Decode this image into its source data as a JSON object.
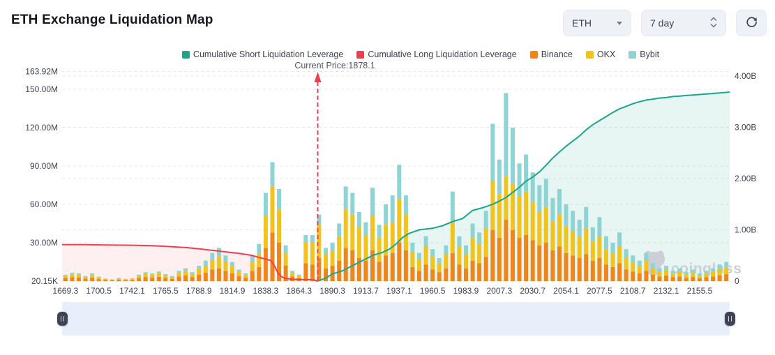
{
  "header": {
    "title": "ETH Exchange Liquidation Map"
  },
  "controls": {
    "symbol": {
      "value": "ETH"
    },
    "period": {
      "value": "7 day"
    },
    "icons": {
      "symbol_caret": "caret-down",
      "period_spinner": "chevrons-up-down",
      "refresh": "circular-arrow"
    }
  },
  "legend": {
    "items": [
      {
        "label": "Cumulative Short Liquidation Leverage",
        "color": "#18a78c"
      },
      {
        "label": "Cumulative Long Liquidation Leverage",
        "color": "#f23c4f"
      },
      {
        "label": "Binance",
        "color": "#ee861b"
      },
      {
        "label": "OKX",
        "color": "#f0c41c"
      },
      {
        "label": "Bybit",
        "color": "#8ed4d4"
      }
    ]
  },
  "annotation": {
    "current_price_text": "Current Price:1878.1",
    "current_price_value": 1878.1
  },
  "watermark": {
    "text": "coinglass",
    "color": "#cbd0d6"
  },
  "chart_data": {
    "type": "bar",
    "subtype": "stacked-bars-with-cumulative-lines",
    "title": "ETH Exchange Liquidation Map",
    "grid": true,
    "legend_position": "top",
    "x_axis": {
      "labels": [
        "1669.3",
        "1700.5",
        "1742.1",
        "1765.5",
        "1788.9",
        "1814.9",
        "1838.3",
        "1864.3",
        "1890.3",
        "1913.7",
        "1937.1",
        "1960.5",
        "1983.9",
        "2007.3",
        "2030.7",
        "2054.1",
        "2077.5",
        "2108.7",
        "2132.1",
        "2155.5"
      ],
      "label_every": 5,
      "num_bars": 100
    },
    "left_axis": {
      "unit": "M",
      "ticks": [
        {
          "label": "163.92M",
          "value": 163.92
        },
        {
          "label": "150.00M",
          "value": 150
        },
        {
          "label": "120.00M",
          "value": 120
        },
        {
          "label": "90.00M",
          "value": 90
        },
        {
          "label": "60.00M",
          "value": 60
        },
        {
          "label": "30.00M",
          "value": 30
        },
        {
          "label": "20.15K",
          "value": 0.02
        }
      ],
      "range": [
        0,
        163.92
      ]
    },
    "right_axis": {
      "unit": "B",
      "ticks": [
        {
          "label": "4.00B",
          "value": 4
        },
        {
          "label": "3.00B",
          "value": 3
        },
        {
          "label": "2.00B",
          "value": 2
        },
        {
          "label": "1.00B",
          "value": 1
        },
        {
          "label": "0",
          "value": 0
        }
      ],
      "range": [
        0,
        4
      ]
    },
    "series": [
      {
        "name": "Binance",
        "type": "bar",
        "axis": "left",
        "color": "#ee861b",
        "values": [
          2.5,
          3,
          2.8,
          2,
          2.6,
          1.6,
          1,
          0.7,
          1.2,
          0.8,
          1,
          2.4,
          3.2,
          2.8,
          3.4,
          2.5,
          1.8,
          3.6,
          4.4,
          3,
          5,
          6.5,
          9,
          10,
          8,
          6,
          4,
          2.6,
          8,
          11,
          26,
          38,
          30,
          12,
          3.6,
          2.2,
          14,
          13,
          18,
          10,
          12,
          16,
          26,
          24,
          18,
          16,
          24,
          15,
          20,
          22,
          30,
          24,
          11,
          8,
          13,
          9,
          7,
          10,
          22,
          13,
          10,
          16,
          14,
          19,
          40,
          34,
          48,
          40,
          34,
          36,
          32,
          28,
          30,
          24,
          27,
          22,
          20,
          18,
          21,
          16,
          18,
          13,
          11,
          14,
          9,
          7.5,
          6,
          8,
          5,
          3.6,
          4.4,
          3,
          3.6,
          2.6,
          3.2,
          2.2,
          3,
          3.6,
          4.6,
          5.4
        ]
      },
      {
        "name": "OKX",
        "type": "bar",
        "axis": "left",
        "color": "#f0c41c",
        "values": [
          1.8,
          2.3,
          2.2,
          1.4,
          2.2,
          1.3,
          0.7,
          0.5,
          0.9,
          0.7,
          0.8,
          1.8,
          2.6,
          2.2,
          2.8,
          2,
          1.5,
          2.9,
          3.6,
          2.6,
          4.5,
          5.5,
          7.5,
          9,
          7,
          5.5,
          3,
          2.2,
          7,
          10,
          25,
          36,
          26,
          10,
          2.9,
          1.8,
          16,
          17,
          26,
          11,
          12,
          19,
          30,
          28,
          24,
          20,
          27,
          19,
          24,
          24,
          34,
          28,
          12,
          9,
          14,
          10,
          7,
          11,
          24,
          14,
          11,
          18,
          15,
          22,
          38,
          34,
          34,
          36,
          32,
          34,
          30,
          26,
          28,
          23,
          25,
          21,
          19,
          17,
          20,
          15,
          17,
          12,
          11,
          13,
          9,
          7,
          5.5,
          8,
          5,
          3.6,
          4.2,
          2.8,
          3.6,
          2.4,
          3.2,
          2,
          2.8,
          3.6,
          4.6,
          5.2
        ]
      },
      {
        "name": "Bybit",
        "type": "bar",
        "axis": "left",
        "color": "#8ed4d4",
        "values": [
          0.7,
          1.2,
          1,
          0.6,
          1.2,
          0.6,
          0.3,
          0.3,
          0.4,
          0.3,
          0.4,
          0.8,
          1.2,
          1,
          1.3,
          1,
          0.7,
          1.5,
          2,
          1.4,
          2.5,
          4,
          5.5,
          7,
          5,
          3.5,
          2,
          1.2,
          5,
          8,
          18,
          19,
          16,
          6,
          1.5,
          1,
          6,
          6,
          8,
          5,
          6,
          10,
          18,
          17,
          12,
          10,
          22,
          10,
          16,
          21,
          27,
          15,
          7,
          5,
          8,
          6,
          4,
          7,
          24,
          8,
          7,
          11,
          9,
          14,
          45,
          27,
          65,
          44,
          26,
          29,
          23,
          21,
          22,
          18,
          20,
          17,
          16,
          13,
          17,
          11,
          15,
          10,
          8,
          11,
          7,
          5.5,
          4.5,
          6,
          4,
          2.8,
          3.4,
          2.2,
          2.8,
          2,
          2.6,
          1.8,
          2.2,
          2.8,
          3.8,
          4.4
        ]
      }
    ],
    "lines": [
      {
        "name": "Cumulative Short Liquidation Leverage",
        "type": "line",
        "axis": "right",
        "color": "#18a78c",
        "fill": "rgba(24,167,140,0.10)",
        "points": [
          [
            37.8,
            0
          ],
          [
            39,
            0.06
          ],
          [
            40,
            0.14
          ],
          [
            41.5,
            0.2
          ],
          [
            43,
            0.3
          ],
          [
            44.5,
            0.4
          ],
          [
            46,
            0.5
          ],
          [
            47.5,
            0.56
          ],
          [
            48.5,
            0.62
          ],
          [
            49.5,
            0.72
          ],
          [
            50.5,
            0.85
          ],
          [
            51.5,
            0.93
          ],
          [
            53,
            1.0
          ],
          [
            55,
            1.03
          ],
          [
            56.5,
            1.08
          ],
          [
            58,
            1.16
          ],
          [
            59.5,
            1.22
          ],
          [
            61,
            1.38
          ],
          [
            62.5,
            1.43
          ],
          [
            64,
            1.5
          ],
          [
            65,
            1.56
          ],
          [
            66,
            1.63
          ],
          [
            67,
            1.73
          ],
          [
            68,
            1.83
          ],
          [
            69,
            1.95
          ],
          [
            70,
            2.03
          ],
          [
            71,
            2.13
          ],
          [
            72,
            2.26
          ],
          [
            73,
            2.4
          ],
          [
            74,
            2.52
          ],
          [
            75,
            2.63
          ],
          [
            76,
            2.73
          ],
          [
            77,
            2.83
          ],
          [
            78,
            2.95
          ],
          [
            79,
            3.05
          ],
          [
            80,
            3.13
          ],
          [
            81,
            3.21
          ],
          [
            82,
            3.29
          ],
          [
            83,
            3.36
          ],
          [
            84,
            3.41
          ],
          [
            85,
            3.46
          ],
          [
            86,
            3.5
          ],
          [
            87,
            3.53
          ],
          [
            88,
            3.55
          ],
          [
            89,
            3.57
          ],
          [
            90,
            3.58
          ],
          [
            91,
            3.6
          ],
          [
            92,
            3.61
          ],
          [
            93,
            3.62
          ],
          [
            94,
            3.63
          ],
          [
            95,
            3.64
          ],
          [
            96,
            3.65
          ],
          [
            97,
            3.66
          ],
          [
            98,
            3.67
          ],
          [
            99,
            3.68
          ],
          [
            99.5,
            3.69
          ]
        ]
      },
      {
        "name": "Cumulative Long Liquidation Leverage",
        "type": "line",
        "axis": "right",
        "color": "#f23c4f",
        "fill": "rgba(242,60,79,0.08)",
        "points": [
          [
            -0.5,
            0.71
          ],
          [
            3,
            0.71
          ],
          [
            6,
            0.705
          ],
          [
            10,
            0.7
          ],
          [
            13,
            0.69
          ],
          [
            16,
            0.67
          ],
          [
            18,
            0.655
          ],
          [
            20,
            0.63
          ],
          [
            22,
            0.6
          ],
          [
            24,
            0.57
          ],
          [
            26,
            0.54
          ],
          [
            27,
            0.52
          ],
          [
            28,
            0.5
          ],
          [
            29,
            0.46
          ],
          [
            30,
            0.43
          ],
          [
            30.8,
            0.4
          ],
          [
            31.3,
            0.3
          ],
          [
            31.8,
            0.17
          ],
          [
            32.3,
            0.09
          ],
          [
            33,
            0.05
          ],
          [
            34,
            0.035
          ],
          [
            35.5,
            0.03
          ],
          [
            36.5,
            0.028
          ],
          [
            37.3,
            0.02
          ],
          [
            37.8,
            0
          ]
        ]
      }
    ],
    "current_price": {
      "value": 1878.1,
      "bar_index": 37.8,
      "color": "#f23c4f"
    }
  }
}
